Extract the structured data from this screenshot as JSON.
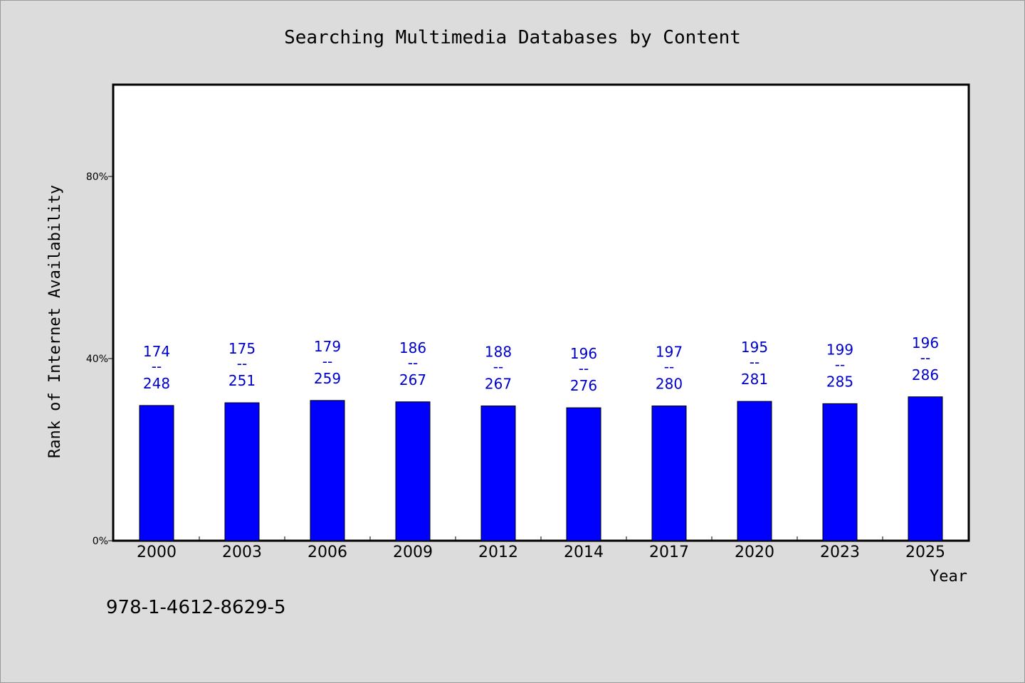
{
  "chart_data": {
    "type": "bar",
    "title": "Searching Multimedia Databases by Content",
    "xlabel": "Year",
    "ylabel": "Rank of Internet Availability",
    "categories": [
      "2000",
      "2003",
      "2006",
      "2009",
      "2012",
      "2014",
      "2017",
      "2020",
      "2023",
      "2025"
    ],
    "values": [
      29.7,
      30.3,
      30.8,
      30.5,
      29.6,
      29.2,
      29.6,
      30.6,
      30.1,
      31.6
    ],
    "data_labels": [
      {
        "top": "174",
        "sep": "--",
        "bottom": "248"
      },
      {
        "top": "175",
        "sep": "--",
        "bottom": "251"
      },
      {
        "top": "179",
        "sep": "--",
        "bottom": "259"
      },
      {
        "top": "186",
        "sep": "--",
        "bottom": "267"
      },
      {
        "top": "188",
        "sep": "--",
        "bottom": "267"
      },
      {
        "top": "196",
        "sep": "--",
        "bottom": "276"
      },
      {
        "top": "197",
        "sep": "--",
        "bottom": "280"
      },
      {
        "top": "195",
        "sep": "--",
        "bottom": "281"
      },
      {
        "top": "199",
        "sep": "--",
        "bottom": "285"
      },
      {
        "top": "196",
        "sep": "--",
        "bottom": "286"
      }
    ],
    "ylim": [
      0,
      100
    ],
    "yticks": [
      0,
      40,
      80
    ],
    "ytick_labels": [
      "0%",
      "40%",
      "80%"
    ],
    "grid": false,
    "legend": "none",
    "bar_color": "#0000ff",
    "label_color": "#0000cc",
    "background": "#dcdcdc",
    "plot_background": "#ffffff"
  },
  "footer": {
    "isbn": "978-1-4612-8629-5"
  }
}
